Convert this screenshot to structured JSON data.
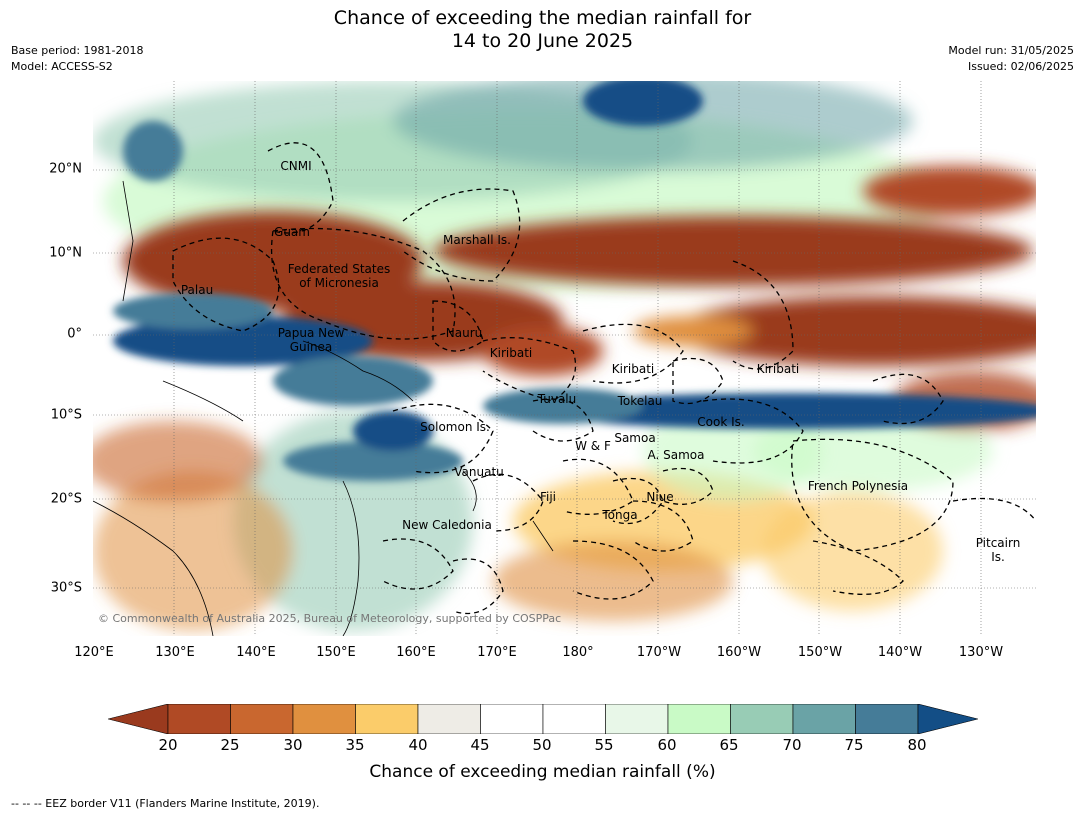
{
  "title_line1": "Chance of exceeding the median rainfall for",
  "title_line2": "14 to 20 June 2025",
  "meta": {
    "base_period": "Base period: 1981-2018",
    "model": "Model: ACCESS-S2",
    "model_run": "Model run: 31/05/2025",
    "issued": "Issued: 02/06/2025"
  },
  "copyright": "© Commonwealth of Australia 2025, Bureau of Meteorology, supported by COSPPac",
  "lat_ticks": [
    "20°N",
    "10°N",
    "0°",
    "10°S",
    "20°S",
    "30°S"
  ],
  "lon_ticks": [
    "120°E",
    "130°E",
    "140°E",
    "150°E",
    "160°E",
    "170°E",
    "180°",
    "170°W",
    "160°W",
    "150°W",
    "140°W",
    "130°W"
  ],
  "regions": [
    {
      "name": "CNMI"
    },
    {
      "name": "Guam"
    },
    {
      "name": "Marshall Is."
    },
    {
      "name": "Federated States\nof Micronesia"
    },
    {
      "name": "Palau"
    },
    {
      "name": "Papua New\nGuinea"
    },
    {
      "name": "Nauru"
    },
    {
      "name": "Kiribati"
    },
    {
      "name": "Kiribati"
    },
    {
      "name": "Kiribati"
    },
    {
      "name": "Tuvalu"
    },
    {
      "name": "Tokelau"
    },
    {
      "name": "Cook Is."
    },
    {
      "name": "Solomon Is."
    },
    {
      "name": "W & F"
    },
    {
      "name": "Samoa"
    },
    {
      "name": "A. Samoa"
    },
    {
      "name": "Vanuatu"
    },
    {
      "name": "Fiji"
    },
    {
      "name": "Niue"
    },
    {
      "name": "Tonga"
    },
    {
      "name": "French Polynesia"
    },
    {
      "name": "New Caledonia"
    },
    {
      "name": "Pitcairn\nIs."
    }
  ],
  "colorbar": {
    "ticks": [
      "20",
      "25",
      "30",
      "35",
      "40",
      "45",
      "50",
      "55",
      "60",
      "65",
      "70",
      "75",
      "80"
    ],
    "colors": [
      "#9a3a1e",
      "#b04a25",
      "#c9672f",
      "#e0903f",
      "#fbcc6a",
      "#eeece6",
      "#ffffff",
      "#ffffff",
      "#e8f7e8",
      "#c9fac6",
      "#98ccb5",
      "#6aa3a6",
      "#457c98",
      "#134e86"
    ],
    "label": "Chance of exceeding median rainfall (%)"
  },
  "footnote": "--  --  -- EEZ border V11 (Flanders Marine Institute, 2019)."
}
